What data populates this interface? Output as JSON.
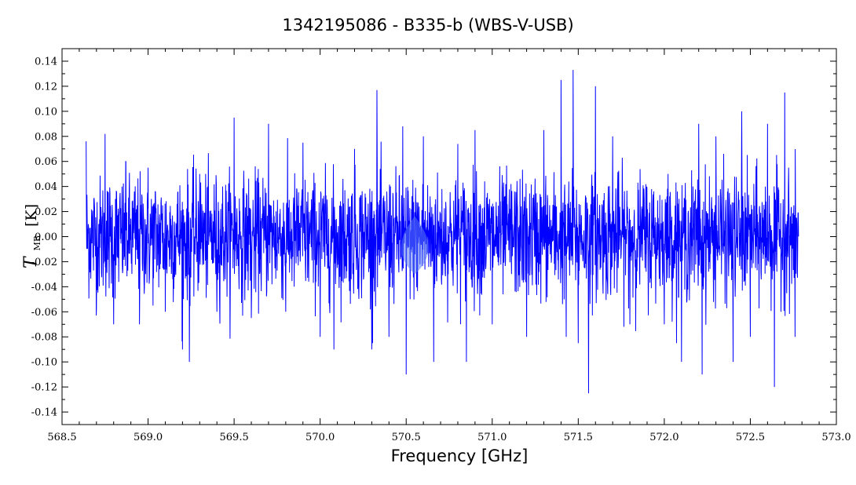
{
  "chart_data": {
    "type": "line",
    "title": "1342195086 - B335-b (WBS-V-USB)",
    "xlabel": "Frequency [GHz]",
    "ylabel": {
      "symbol": "T",
      "subscript": "MB",
      "unit": "[K]"
    },
    "xlim": [
      568.5,
      573.0
    ],
    "ylim": [
      -0.15,
      0.15
    ],
    "x_ticks": [
      "568.5",
      "569.0",
      "569.5",
      "570.0",
      "570.5",
      "571.0",
      "571.5",
      "572.0",
      "572.5",
      "573.0"
    ],
    "y_ticks": [
      "-0.14",
      "-0.12",
      "-0.10",
      "-0.08",
      "-0.06",
      "-0.04",
      "-0.02",
      "0.00",
      "0.02",
      "0.04",
      "0.06",
      "0.08",
      "0.10",
      "0.12",
      "0.14"
    ],
    "grid": false,
    "series": [
      {
        "color": "#0000ff",
        "x_start": 568.64,
        "x_end": 572.78,
        "noise_rms": 0.03,
        "x": [
          568.64,
          568.7,
          568.75,
          568.8,
          568.87,
          568.95,
          569.0,
          569.1,
          569.2,
          569.24,
          569.3,
          569.4,
          569.5,
          569.6,
          569.7,
          569.8,
          569.9,
          570.0,
          570.08,
          570.2,
          570.3,
          570.33,
          570.4,
          570.48,
          570.5,
          570.6,
          570.66,
          570.8,
          570.85,
          570.9,
          571.0,
          571.2,
          571.3,
          571.4,
          571.43,
          571.47,
          571.5,
          571.56,
          571.6,
          571.7,
          571.8,
          572.0,
          572.1,
          572.2,
          572.22,
          572.3,
          572.4,
          572.45,
          572.5,
          572.6,
          572.64,
          572.7,
          572.76
        ],
        "y": [
          0.076,
          -0.057,
          0.082,
          -0.07,
          0.06,
          -0.07,
          0.055,
          -0.06,
          -0.09,
          -0.1,
          0.05,
          -0.06,
          0.095,
          -0.065,
          0.09,
          -0.06,
          0.075,
          -0.08,
          -0.09,
          0.07,
          -0.09,
          0.117,
          -0.08,
          0.088,
          -0.11,
          0.08,
          -0.1,
          0.074,
          -0.1,
          0.085,
          -0.07,
          -0.08,
          0.085,
          0.125,
          -0.08,
          0.133,
          -0.085,
          -0.125,
          0.12,
          0.08,
          -0.07,
          -0.07,
          -0.1,
          0.09,
          -0.11,
          0.08,
          -0.1,
          0.1,
          -0.08,
          0.09,
          -0.12,
          0.115,
          -0.08
        ]
      }
    ]
  },
  "watermark": {
    "color": "#5b7bf0"
  }
}
